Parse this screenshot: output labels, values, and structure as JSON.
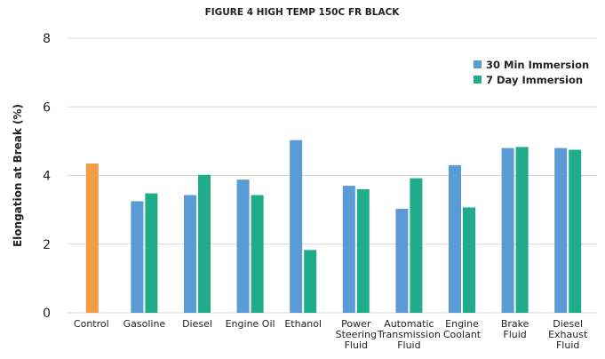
{
  "chart_data": {
    "type": "bar",
    "title": "FIGURE 4 HIGH TEMP 150C FR BLACK",
    "ylabel": "Elongation at Break (%)",
    "xlabel": "",
    "ylim": [
      0,
      8
    ],
    "yticks": [
      0,
      2,
      4,
      6,
      8
    ],
    "grid": true,
    "legend_position": "top-right",
    "categories": [
      [
        "Control"
      ],
      [
        "Gasoline"
      ],
      [
        "Diesel"
      ],
      [
        "Engine Oil"
      ],
      [
        "Ethanol"
      ],
      [
        "Power",
        "Steering",
        "Fluid"
      ],
      [
        "Automatic",
        "Transmission",
        "Fluid"
      ],
      [
        "Engine",
        "Coolant"
      ],
      [
        "Brake",
        "Fluid"
      ],
      [
        "Diesel",
        "Exhaust",
        "Fluid"
      ]
    ],
    "control": {
      "value": 4.35,
      "color": "#f39c48"
    },
    "series": [
      {
        "name": "30 Min Immersion",
        "color": "#5b9bd5",
        "values": [
          null,
          3.25,
          3.43,
          3.88,
          5.03,
          3.7,
          3.03,
          4.3,
          4.8,
          4.8
        ]
      },
      {
        "name": "7 Day Immersion",
        "color": "#20ab8a",
        "values": [
          null,
          3.48,
          4.02,
          3.43,
          1.83,
          3.6,
          3.92,
          3.07,
          4.83,
          4.75
        ]
      }
    ]
  }
}
